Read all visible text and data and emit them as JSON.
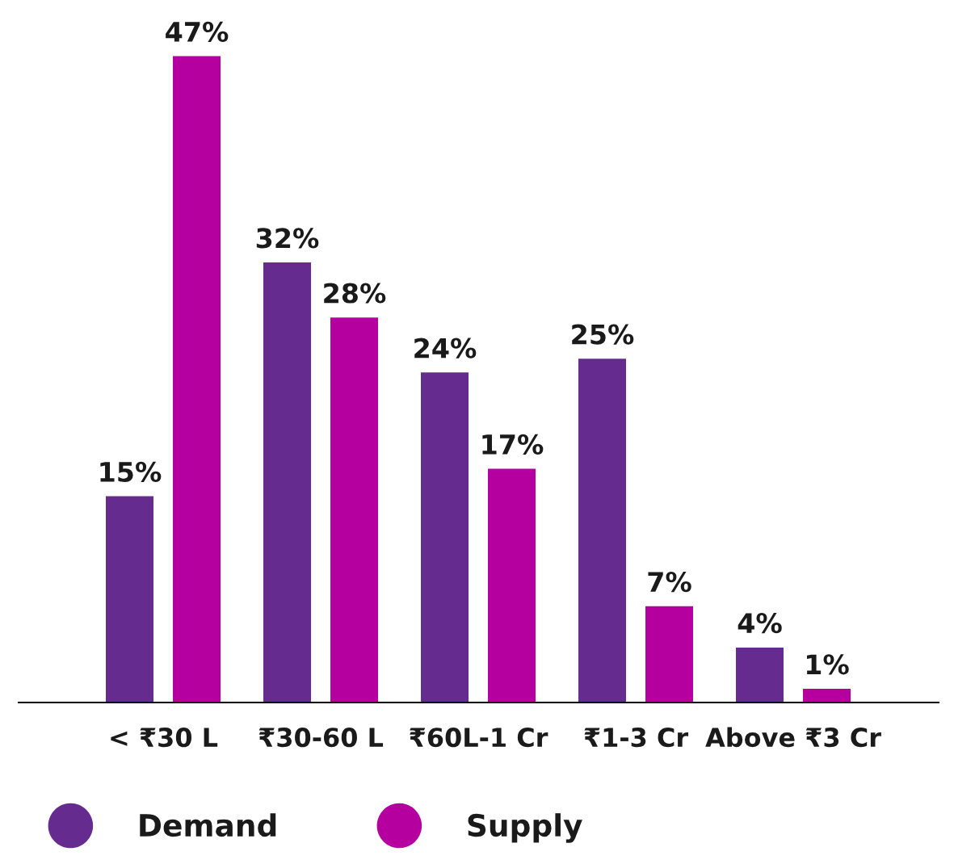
{
  "chart_data": {
    "type": "bar",
    "categories": [
      "< ₹30 L",
      "₹30-60 L",
      "₹60L-1 Cr",
      "₹1-3 Cr",
      "Above ₹3 Cr"
    ],
    "series": [
      {
        "name": "Demand",
        "color": "#652b8f",
        "values": [
          15,
          32,
          24,
          25,
          4
        ],
        "value_labels": [
          "15%",
          "32%",
          "24%",
          "25%",
          "4%"
        ]
      },
      {
        "name": "Supply",
        "color": "#b5009f",
        "values": [
          47,
          28,
          17,
          7,
          1
        ],
        "value_labels": [
          "47%",
          "28%",
          "17%",
          "7%",
          "1%"
        ]
      }
    ],
    "grid": false,
    "legend": "bottom left"
  }
}
